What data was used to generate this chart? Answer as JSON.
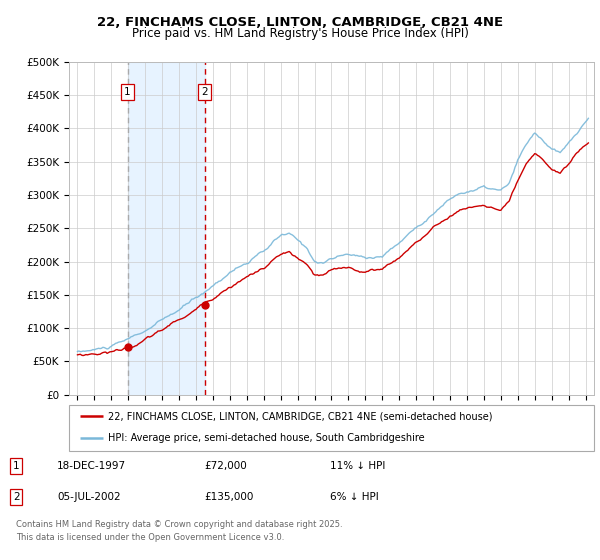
{
  "title_line1": "22, FINCHAMS CLOSE, LINTON, CAMBRIDGE, CB21 4NE",
  "title_line2": "Price paid vs. HM Land Registry's House Price Index (HPI)",
  "legend_entry1": "22, FINCHAMS CLOSE, LINTON, CAMBRIDGE, CB21 4NE (semi-detached house)",
  "legend_entry2": "HPI: Average price, semi-detached house, South Cambridgeshire",
  "footer_line1": "Contains HM Land Registry data © Crown copyright and database right 2025.",
  "footer_line2": "This data is licensed under the Open Government Licence v3.0.",
  "table_rows": [
    {
      "num": "1",
      "date": "18-DEC-1997",
      "price": "£72,000",
      "hpi": "11% ↓ HPI"
    },
    {
      "num": "2",
      "date": "05-JUL-2002",
      "price": "£135,000",
      "hpi": "6% ↓ HPI"
    }
  ],
  "sale1_date": 1997.96,
  "sale1_price": 72000,
  "sale2_date": 2002.51,
  "sale2_price": 135000,
  "hpi_color": "#7ab8d9",
  "price_color": "#cc0000",
  "sale_dot_color": "#cc0000",
  "vline1_color": "#aaaaaa",
  "vline2_color": "#cc0000",
  "shade_color": "#ddeeff",
  "ylim_min": 0,
  "ylim_max": 500000,
  "xlim_min": 1994.5,
  "xlim_max": 2025.5,
  "ytick_values": [
    0,
    50000,
    100000,
    150000,
    200000,
    250000,
    300000,
    350000,
    400000,
    450000,
    500000
  ],
  "ytick_labels": [
    "£0",
    "£50K",
    "£100K",
    "£150K",
    "£200K",
    "£250K",
    "£300K",
    "£350K",
    "£400K",
    "£450K",
    "£500K"
  ],
  "xtick_years": [
    1995,
    1996,
    1997,
    1998,
    1999,
    2000,
    2001,
    2002,
    2003,
    2004,
    2005,
    2006,
    2007,
    2008,
    2009,
    2010,
    2011,
    2012,
    2013,
    2014,
    2015,
    2016,
    2017,
    2018,
    2019,
    2020,
    2021,
    2022,
    2023,
    2024,
    2025
  ]
}
